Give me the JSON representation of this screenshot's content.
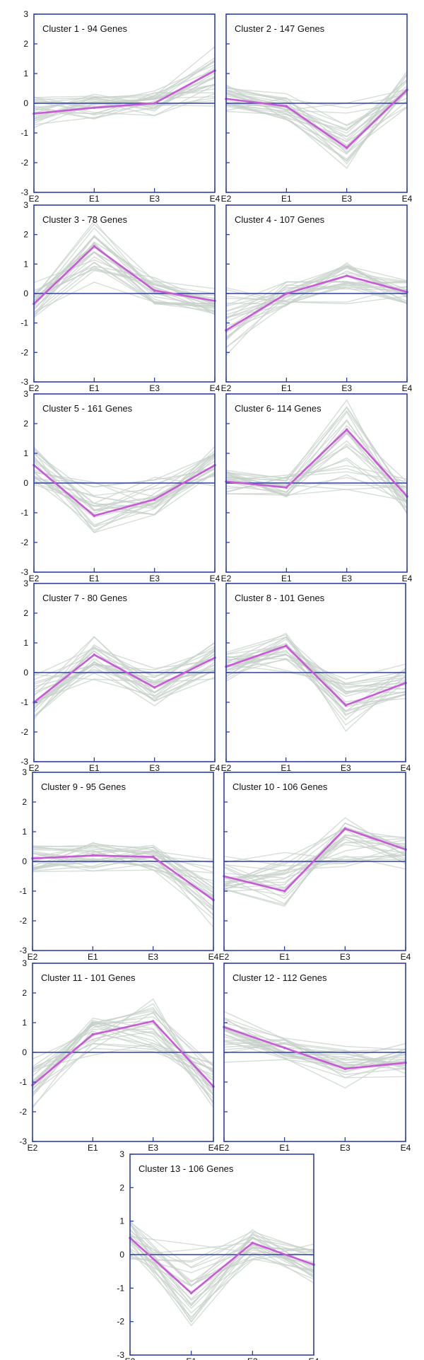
{
  "colors": {
    "frame": "#2d3fa8",
    "zero_line": "#2d3fa8",
    "mean_line": "#c85ad8",
    "gene_lines": "#c4d0c8"
  },
  "chart_data": [
    {
      "type": "line",
      "title": "Cluster 1 - 94 Genes",
      "categories": [
        "E2",
        "E1",
        "E3",
        "E4"
      ],
      "ylim": [
        -3,
        3
      ],
      "yticks": [
        "3",
        "2",
        "1",
        "0",
        "-1",
        "-2",
        "-3"
      ],
      "grid": false,
      "series": [
        {
          "values": [
            -0.35,
            -0.15,
            0.0,
            1.1
          ]
        }
      ]
    },
    {
      "type": "line",
      "title": "Cluster 2 - 147 Genes",
      "categories": [
        "E2",
        "E1",
        "E3",
        "E4"
      ],
      "ylim": [
        -3,
        3
      ],
      "yticks": [],
      "grid": false,
      "series": [
        {
          "values": [
            0.15,
            -0.1,
            -1.5,
            0.45
          ]
        }
      ]
    },
    {
      "type": "line",
      "title": "Cluster 3 - 78 Genes",
      "categories": [
        "E2",
        "E1",
        "E3",
        "E4"
      ],
      "ylim": [
        -3,
        3
      ],
      "yticks": [
        "3",
        "2",
        "1",
        "0",
        "-1",
        "-2",
        "-3"
      ],
      "grid": false,
      "series": [
        {
          "values": [
            -0.35,
            1.6,
            0.1,
            -0.25
          ]
        }
      ]
    },
    {
      "type": "line",
      "title": "Cluster 4 - 107 Genes",
      "categories": [
        "E2",
        "E1",
        "E3",
        "E4"
      ],
      "ylim": [
        -3,
        3
      ],
      "yticks": [],
      "grid": false,
      "series": [
        {
          "values": [
            -1.25,
            0.0,
            0.6,
            0.05
          ]
        }
      ]
    },
    {
      "type": "line",
      "title": "Cluster 5 - 161 Genes",
      "categories": [
        "E2",
        "E1",
        "E3",
        "E4"
      ],
      "ylim": [
        -3,
        3
      ],
      "yticks": [
        "3",
        "2",
        "1",
        "0",
        "-1",
        "-2",
        "-3"
      ],
      "grid": false,
      "series": [
        {
          "values": [
            0.6,
            -1.1,
            -0.55,
            0.6
          ]
        }
      ]
    },
    {
      "type": "line",
      "title": "Cluster 6- 114 Genes",
      "categories": [
        "E2",
        "E1",
        "E3",
        "E4"
      ],
      "ylim": [
        -3,
        3
      ],
      "yticks": [],
      "grid": false,
      "series": [
        {
          "values": [
            0.05,
            -0.15,
            1.8,
            -0.45
          ]
        }
      ]
    },
    {
      "type": "line",
      "title": "Cluster 7 - 80 Genes",
      "categories": [
        "E2",
        "E1",
        "E3",
        "E4"
      ],
      "ylim": [
        -3,
        3
      ],
      "yticks": [
        "3",
        "2",
        "1",
        "0",
        "-1",
        "-2",
        "-3"
      ],
      "grid": false,
      "series": [
        {
          "values": [
            -1.0,
            0.6,
            -0.5,
            0.5
          ]
        }
      ]
    },
    {
      "type": "line",
      "title": "Cluster 8 - 101 Genes",
      "categories": [
        "E2",
        "E1",
        "E3",
        "E4"
      ],
      "ylim": [
        -3,
        3
      ],
      "yticks": [],
      "grid": false,
      "series": [
        {
          "values": [
            0.2,
            0.9,
            -1.1,
            -0.35
          ]
        }
      ]
    },
    {
      "type": "line",
      "title": "Cluster 9 - 95 Genes",
      "categories": [
        "E2",
        "E1",
        "E3",
        "E4"
      ],
      "ylim": [
        -3,
        3
      ],
      "yticks": [
        "3",
        "2",
        "1",
        "0",
        "-1",
        "-2",
        "-3"
      ],
      "grid": false,
      "series": [
        {
          "values": [
            0.1,
            0.2,
            0.15,
            -1.3
          ]
        }
      ]
    },
    {
      "type": "line",
      "title": "Cluster 10 - 106 Genes",
      "categories": [
        "E2",
        "E1",
        "E3",
        "E4"
      ],
      "ylim": [
        -3,
        3
      ],
      "yticks": [],
      "grid": false,
      "series": [
        {
          "values": [
            -0.5,
            -1.0,
            1.1,
            0.4
          ]
        }
      ]
    },
    {
      "type": "line",
      "title": "Cluster 11 - 101 Genes",
      "categories": [
        "E2",
        "E1",
        "E3",
        "E4"
      ],
      "ylim": [
        -3,
        3
      ],
      "yticks": [
        "3",
        "2",
        "1",
        "0",
        "-1",
        "-2",
        "-3"
      ],
      "grid": false,
      "series": [
        {
          "values": [
            -1.1,
            0.6,
            1.05,
            -1.15
          ]
        }
      ]
    },
    {
      "type": "line",
      "title": "Cluster 12 - 112 Genes",
      "categories": [
        "E2",
        "E1",
        "E3",
        "E4"
      ],
      "ylim": [
        -3,
        3
      ],
      "yticks": [],
      "grid": false,
      "series": [
        {
          "values": [
            0.85,
            0.15,
            -0.55,
            -0.35
          ]
        }
      ]
    },
    {
      "type": "line",
      "title": "Cluster 13 - 106 Genes",
      "categories": [
        "E2",
        "E1",
        "E3",
        "E4"
      ],
      "ylim": [
        -3,
        3
      ],
      "yticks": [
        "3",
        "2",
        "1",
        "0",
        "-1",
        "-2",
        "-3"
      ],
      "grid": false,
      "series": [
        {
          "values": [
            0.5,
            -1.15,
            0.35,
            -0.3
          ]
        }
      ]
    }
  ]
}
